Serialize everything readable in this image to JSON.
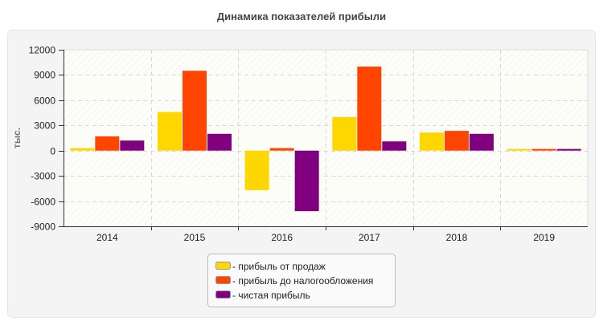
{
  "chart_data": {
    "type": "bar",
    "title": "Динамика показателей прибыли",
    "xlabel": "",
    "ylabel": "тыс.",
    "ylim": [
      -9000,
      12000
    ],
    "yticks": [
      "12000",
      "9000",
      "6000",
      "3000",
      "0",
      "-3000",
      "-6000",
      "-9000"
    ],
    "ytick_values": [
      12000,
      9000,
      6000,
      3000,
      0,
      -3000,
      -6000,
      -9000
    ],
    "categories": [
      "2014",
      "2015",
      "2016",
      "2017",
      "2018",
      "2019"
    ],
    "grid": true,
    "legend_position": "bottom",
    "series": [
      {
        "name": "- прибыль от продаж",
        "color": "#FFD700",
        "values": [
          300,
          4600,
          -4700,
          4000,
          2150,
          200
        ]
      },
      {
        "name": "- прибыль до налогообложения",
        "color": "#FF4500",
        "values": [
          1700,
          9500,
          300,
          10000,
          2350,
          200
        ]
      },
      {
        "name": "- чистая прибыль",
        "color": "#800080",
        "values": [
          1200,
          2000,
          -7200,
          1100,
          2000,
          200
        ]
      }
    ]
  }
}
